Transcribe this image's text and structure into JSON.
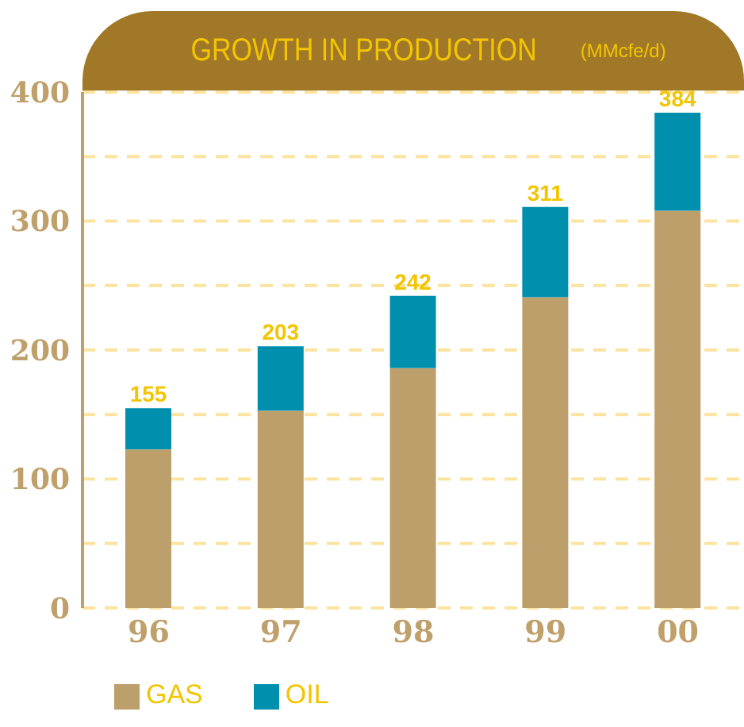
{
  "chart_data": {
    "type": "bar",
    "title": "GROWTH IN PRODUCTION",
    "subtitle": "(MMcfe/d)",
    "categories": [
      "96",
      "97",
      "98",
      "99",
      "00"
    ],
    "series": [
      {
        "name": "GAS",
        "color": "#bd9f6b",
        "values": [
          123,
          153,
          186,
          241,
          308
        ]
      },
      {
        "name": "OIL",
        "color": "#0090ae",
        "values": [
          32,
          50,
          56,
          70,
          76
        ]
      }
    ],
    "stacked": true,
    "totals": [
      "155",
      "203",
      "242",
      "311",
      "384"
    ],
    "ylim": [
      0,
      400
    ],
    "yticks": [
      0,
      {
        "value": 50,
        "label": null
      },
      100,
      {
        "value": 150,
        "label": null
      },
      200,
      {
        "value": 250,
        "label": null
      },
      300,
      {
        "value": 350,
        "label": null
      },
      400
    ],
    "grid": "y",
    "legend": "bottom left"
  }
}
